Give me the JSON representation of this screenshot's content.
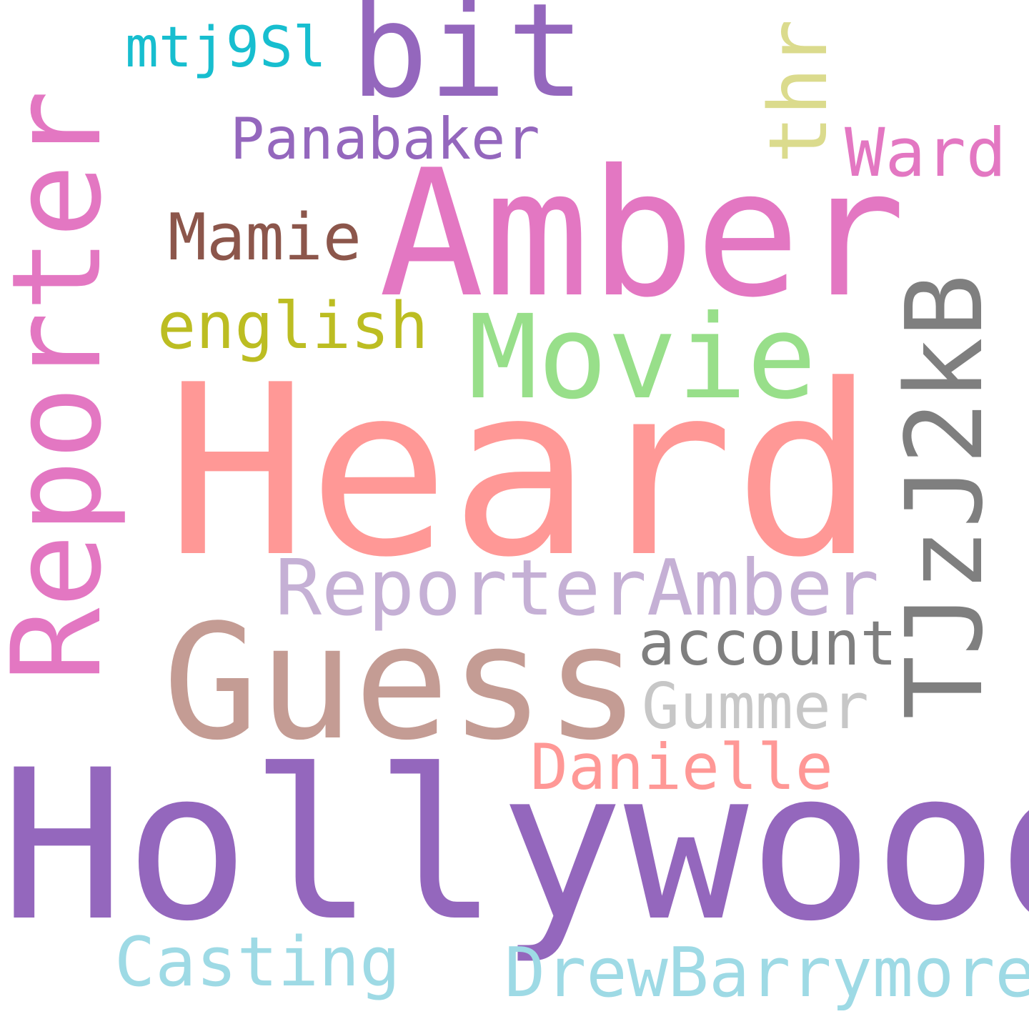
{
  "words": {
    "hollywood": {
      "text": "Hollywood",
      "color": "#9467bd"
    },
    "heard": {
      "text": "Heard",
      "color": "#ff9896"
    },
    "amber": {
      "text": "Amber",
      "color": "#e377c2"
    },
    "guess": {
      "text": "Guess",
      "color": "#c49c94"
    },
    "reporter": {
      "text": "Reporter",
      "color": "#e377c2"
    },
    "tjzj2kb": {
      "text": "TJzJ2kB",
      "color": "#7f7f7f"
    },
    "bit": {
      "text": "bit",
      "color": "#9467bd"
    },
    "movie": {
      "text": "Movie",
      "color": "#98df8a"
    },
    "reporter_amber": {
      "text": "ReporterAmber",
      "color": "#c5b0d5"
    },
    "drewbarrymore": {
      "text": "DrewBarrymore",
      "color": "#9edae5"
    },
    "casting": {
      "text": "Casting",
      "color": "#9edae5"
    },
    "danielle": {
      "text": "Danielle",
      "color": "#ff9896"
    },
    "gummer": {
      "text": "Gummer",
      "color": "#c7c7c7"
    },
    "account": {
      "text": "account",
      "color": "#7f7f7f"
    },
    "english": {
      "text": "english",
      "color": "#bcbd22"
    },
    "mamie": {
      "text": "Mamie",
      "color": "#8c564b"
    },
    "panabaker": {
      "text": "Panabaker",
      "color": "#9467bd"
    },
    "thr": {
      "text": "thr",
      "color": "#dbdb8d"
    },
    "ward": {
      "text": "Ward",
      "color": "#e377c2"
    },
    "mtj9sl": {
      "text": "mtj9Sl",
      "color": "#17becf"
    }
  }
}
